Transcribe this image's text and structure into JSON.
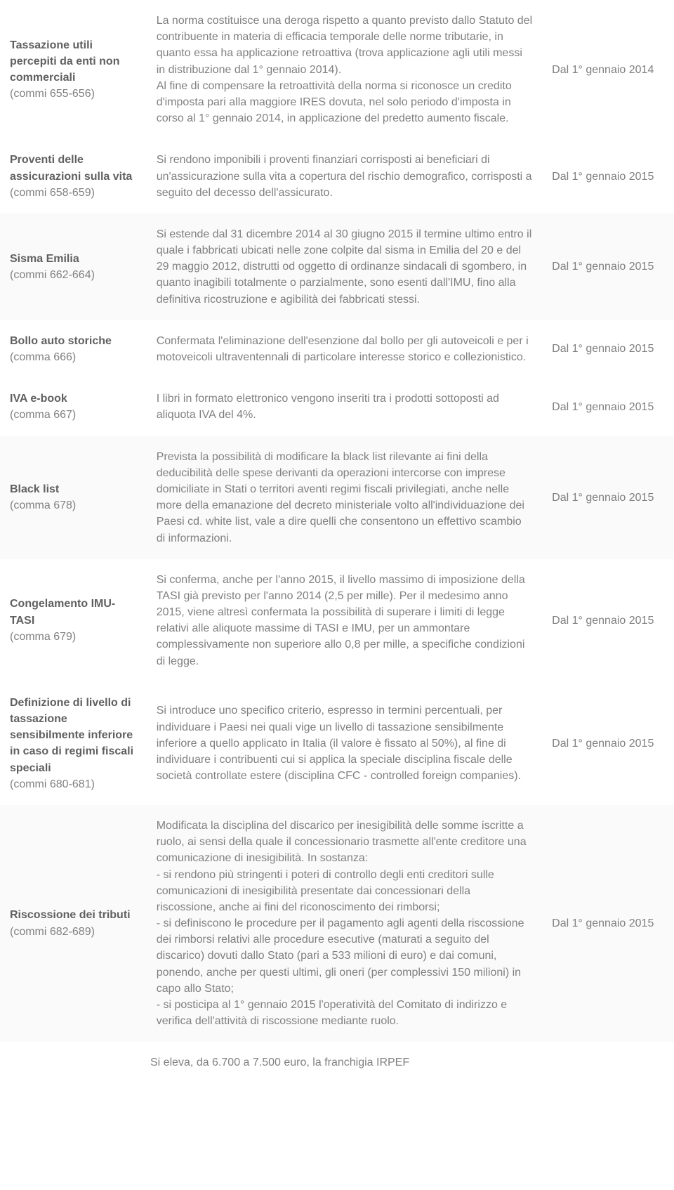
{
  "rows": [
    {
      "title": "Tassazione utili percepiti da enti non commerciali",
      "ref": "(commi 655-656)",
      "desc": "La norma costituisce una deroga rispetto a quanto previsto dallo Statuto del contribuente in materia di efficacia temporale delle norme tributarie, in quanto essa ha applicazione retroattiva (trova applicazione agli utili messi in distribuzione dal 1° gennaio 2014).\nAl fine di compensare la retroattività della norma si riconosce un credito d'imposta pari alla maggiore IRES dovuta, nel solo periodo d'imposta in corso al 1° gennaio 2014, in applicazione del predetto aumento fiscale.",
      "date": "Dal 1° gennaio 2014",
      "shade": false
    },
    {
      "title": "Proventi delle assicurazioni sulla vita",
      "ref": "(commi 658-659)",
      "desc": "Si rendono imponibili i proventi finanziari corrisposti ai beneficiari di un'assicurazione sulla vita a copertura del rischio demografico, corrisposti a seguito del decesso dell'assicurato.",
      "date": "Dal 1° gennaio 2015",
      "shade": false
    },
    {
      "title": "Sisma Emilia",
      "ref": "(commi 662-664)",
      "desc": "Si estende dal 31 dicembre 2014 al 30 giugno 2015 il termine ultimo entro il quale i fabbricati ubicati nelle zone colpite dal sisma in Emilia del 20 e del 29 maggio 2012, distrutti od oggetto di ordinanze sindacali di sgombero, in quanto inagibili totalmente o parzialmente, sono esenti dall'IMU, fino alla definitiva ricostruzione e agibilità dei fabbricati stessi.",
      "date": "Dal 1° gennaio 2015",
      "shade": true
    },
    {
      "title": "Bollo auto storiche",
      "ref": "(comma 666)",
      "desc": "Confermata l'eliminazione dell'esenzione dal bollo per gli autoveicoli e per i motoveicoli ultraventennali di particolare interesse storico e collezionistico.",
      "date": "Dal 1° gennaio 2015",
      "shade": false
    },
    {
      "title": "IVA e-book",
      "ref": "(comma 667)",
      "desc": "I libri in formato elettronico vengono inseriti tra i prodotti sottoposti ad aliquota IVA del 4%.",
      "date": "Dal 1° gennaio 2015",
      "shade": false
    },
    {
      "title": "Black list",
      "ref": "(comma 678)",
      "desc": "Prevista la possibilità di modificare la black list rilevante ai fini della deducibilità delle spese derivanti da operazioni intercorse con imprese domiciliate in Stati o territori aventi regimi fiscali privilegiati, anche nelle more della emanazione del decreto ministeriale volto all'individuazione dei Paesi cd. white list, vale a dire quelli che consentono un effettivo scambio di informazioni.",
      "date": "Dal 1° gennaio 2015",
      "shade": true
    },
    {
      "title": "Congelamento IMU-TASI",
      "ref": "(comma 679)",
      "desc": "Si conferma, anche per l'anno 2015, il livello massimo di imposizione della TASI già previsto per l'anno 2014 (2,5 per mille). Per il medesimo anno 2015, viene altresì confermata la possibilità di superare i limiti di legge relativi alle aliquote massime di TASI e IMU, per un ammontare complessivamente non superiore allo 0,8 per mille, a specifiche condizioni di legge.",
      "date": "Dal 1° gennaio 2015",
      "shade": false
    },
    {
      "title": "Definizione di livello di tassazione sensibilmente inferiore in caso di regimi fiscali speciali",
      "ref": "(commi 680-681)",
      "desc": "Si introduce uno specifico criterio, espresso in termini percentuali, per individuare i Paesi nei quali vige un livello di tassazione sensibilmente inferiore a quello applicato in Italia (il valore è fissato al 50%), al fine di individuare i contribuenti cui si applica la speciale disciplina fiscale delle società controllate estere (disciplina CFC - controlled foreign companies).",
      "date": "Dal 1° gennaio 2015",
      "shade": false
    },
    {
      "title": "Riscossione dei tributi",
      "ref": "(commi 682-689)",
      "desc": "Modificata la disciplina del discarico per inesigibilità delle somme iscritte a ruolo, ai sensi della quale il concessionario trasmette all'ente creditore una comunicazione di inesigibilità. In sostanza:\n- si rendono più stringenti i poteri di controllo degli enti creditori sulle comunicazioni di inesigibilità presentate dai concessionari della riscossione, anche ai fini del riconoscimento dei rimborsi;\n- si definiscono le procedure per il pagamento agli agenti della riscossione dei rimborsi relativi alle procedure esecutive (maturati a seguito del discarico) dovuti dallo Stato (pari a 533 milioni di euro) e dai comuni, ponendo, anche per questi ultimi, gli oneri (per complessivi 150 milioni) in capo allo Stato;\n- si posticipa al 1° gennaio 2015 l'operatività del Comitato di indirizzo e verifica dell'attività di riscossione mediante ruolo.",
      "date": "Dal 1° gennaio 2015",
      "shade": true
    }
  ],
  "fragment": "Si eleva, da 6.700 a 7.500 euro, la franchigia IRPEF"
}
